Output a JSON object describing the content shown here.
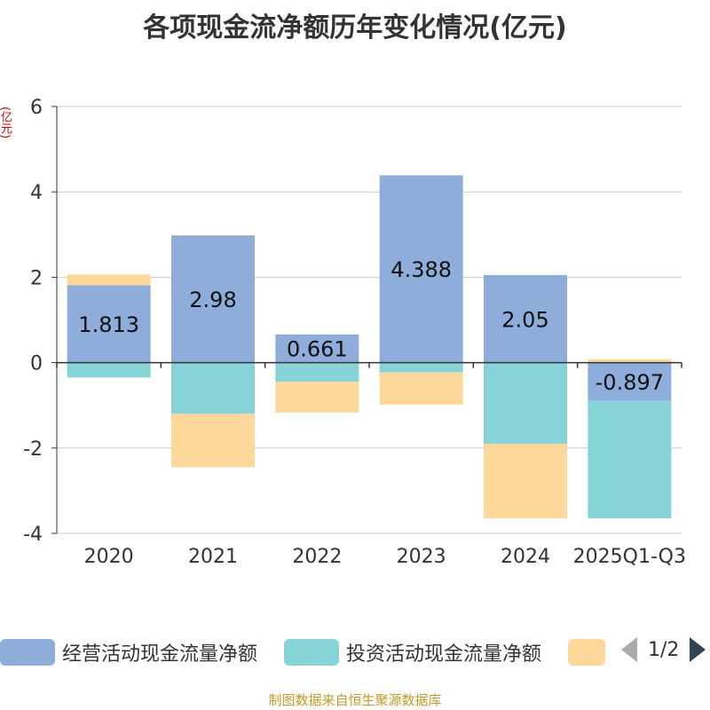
{
  "chart_data": {
    "type": "bar",
    "stacked": true,
    "title": "各项现金流净额历年变化情况(亿元)",
    "ylabel": "(亿元)",
    "categories": [
      "2020",
      "2021",
      "2022",
      "2023",
      "2024",
      "2025Q1-Q3"
    ],
    "ylim": [
      -4,
      6
    ],
    "yticks": [
      -4,
      -2,
      0,
      2,
      4,
      6
    ],
    "series": [
      {
        "name": "经营活动现金流量净额",
        "color": "#8eaddb",
        "values": [
          1.813,
          2.98,
          0.661,
          4.388,
          2.05,
          -0.897
        ],
        "labels": [
          "1.813",
          "2.98",
          "0.661",
          "4.388",
          "2.05",
          "-0.897"
        ]
      },
      {
        "name": "投资活动现金流量净额",
        "color": "#86d4d8",
        "values": [
          -0.35,
          -1.2,
          -0.45,
          -0.23,
          -1.9,
          -2.75
        ]
      },
      {
        "name": "",
        "color": "#fdd89a",
        "values": [
          0.25,
          -1.25,
          -0.72,
          -0.75,
          -1.75,
          0.08
        ]
      }
    ]
  },
  "legend": {
    "pager": "1/2"
  },
  "source": "制图数据来自恒生聚源数据库"
}
